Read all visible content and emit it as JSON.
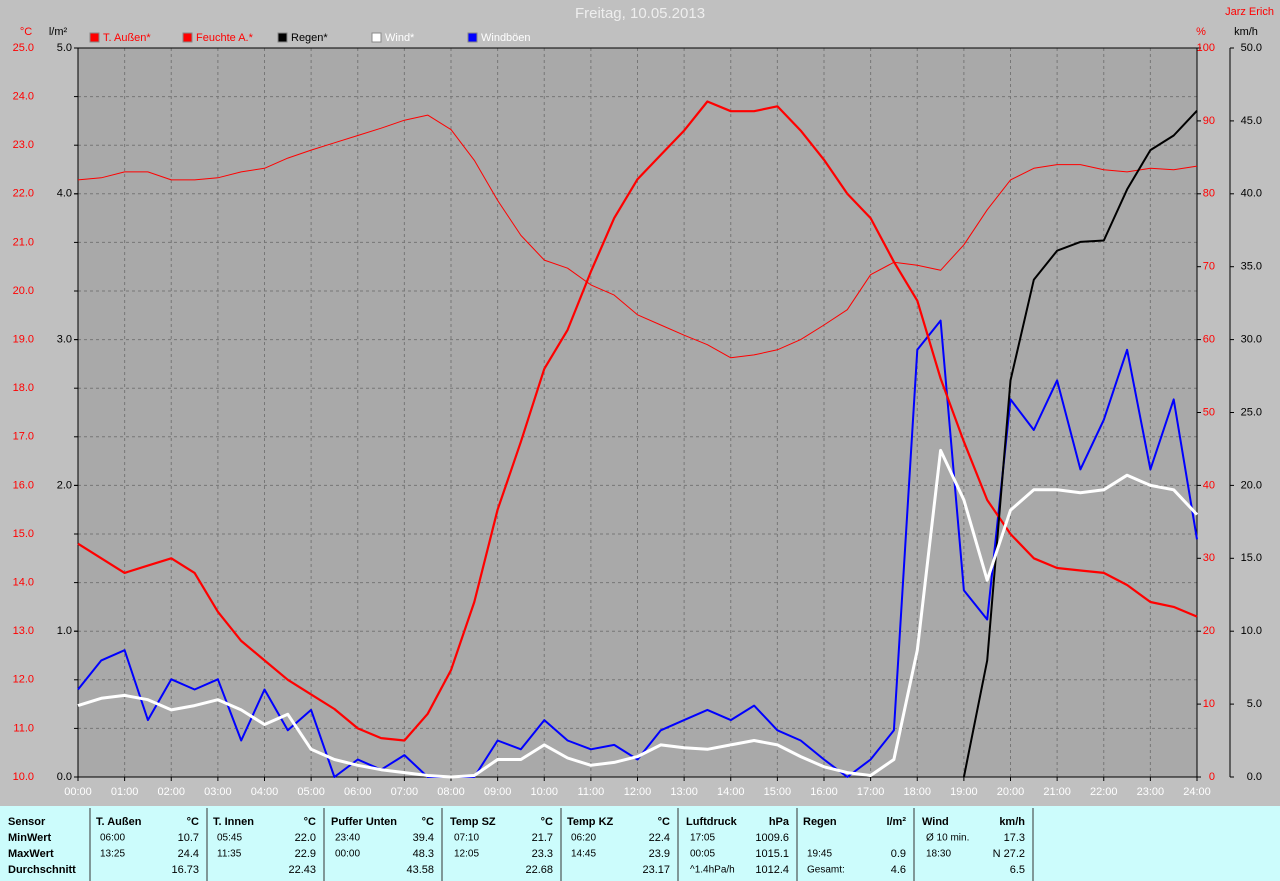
{
  "chart_data": {
    "type": "line",
    "title": "Freitag, 10.05.2013",
    "author": "Jarz Erich",
    "ylabel": "°C",
    "y2label": "%",
    "y3label": "l/m²",
    "y4label": "km/h",
    "x": [
      0,
      0.5,
      1,
      1.5,
      2,
      2.5,
      3,
      3.5,
      4,
      4.5,
      5,
      5.5,
      6,
      6.5,
      7,
      7.5,
      8,
      8.5,
      9,
      9.5,
      10,
      10.5,
      11,
      11.5,
      12,
      12.5,
      13,
      13.5,
      14,
      14.5,
      15,
      15.5,
      16,
      16.5,
      17,
      17.5,
      18,
      18.5,
      19,
      19.5,
      20,
      20.5,
      21,
      21.5,
      22,
      22.5,
      23,
      23.5,
      24
    ],
    "xlim": [
      0,
      24
    ],
    "xticks": [
      {
        "value": 0,
        "label": "00:00"
      },
      {
        "value": 1,
        "label": "01:00"
      },
      {
        "value": 2,
        "label": "02:00"
      },
      {
        "value": 3,
        "label": "03:00"
      },
      {
        "value": 4,
        "label": "04:00"
      },
      {
        "value": 5,
        "label": "05:00"
      },
      {
        "value": 6,
        "label": "06:00"
      },
      {
        "value": 7,
        "label": "07:00"
      },
      {
        "value": 8,
        "label": "08:00"
      },
      {
        "value": 9,
        "label": "09:00"
      },
      {
        "value": 10,
        "label": "10:00"
      },
      {
        "value": 11,
        "label": "11:00"
      },
      {
        "value": 12,
        "label": "12:00"
      },
      {
        "value": 13,
        "label": "13:00"
      },
      {
        "value": 14,
        "label": "14:00"
      },
      {
        "value": 15,
        "label": "15:00"
      },
      {
        "value": 16,
        "label": "16:00"
      },
      {
        "value": 17,
        "label": "17:00"
      },
      {
        "value": 18,
        "label": "18:00"
      },
      {
        "value": 19,
        "label": "19:00"
      },
      {
        "value": 20,
        "label": "20:00"
      },
      {
        "value": 21,
        "label": "21:00"
      },
      {
        "value": 22,
        "label": "22:00"
      },
      {
        "value": 23,
        "label": "23:00"
      },
      {
        "value": 24,
        "label": "24:00"
      }
    ],
    "ylim": [
      10,
      25
    ],
    "yticks": [
      {
        "value": 10,
        "label": "10.0"
      },
      {
        "value": 11,
        "label": "11.0"
      },
      {
        "value": 12,
        "label": "12.0"
      },
      {
        "value": 13,
        "label": "13.0"
      },
      {
        "value": 14,
        "label": "14.0"
      },
      {
        "value": 15,
        "label": "15.0"
      },
      {
        "value": 16,
        "label": "16.0"
      },
      {
        "value": 17,
        "label": "17.0"
      },
      {
        "value": 18,
        "label": "18.0"
      },
      {
        "value": 19,
        "label": "19.0"
      },
      {
        "value": 20,
        "label": "20.0"
      },
      {
        "value": 21,
        "label": "21.0"
      },
      {
        "value": 22,
        "label": "22.0"
      },
      {
        "value": 23,
        "label": "23.0"
      },
      {
        "value": 24,
        "label": "24.0"
      },
      {
        "value": 25,
        "label": "25.0"
      }
    ],
    "y2lim": [
      0,
      100
    ],
    "y2ticks": [
      0,
      10,
      20,
      30,
      40,
      50,
      60,
      70,
      80,
      90,
      100
    ],
    "y3lim": [
      0,
      5
    ],
    "y3ticks": [
      {
        "value": 0,
        "label": "0.0"
      },
      {
        "value": 1,
        "label": "1.0"
      },
      {
        "value": 2,
        "label": "2.0"
      },
      {
        "value": 3,
        "label": "3.0"
      },
      {
        "value": 4,
        "label": "4.0"
      },
      {
        "value": 5,
        "label": "5.0"
      }
    ],
    "y4lim": [
      0,
      50
    ],
    "y4ticks": [
      {
        "value": 0,
        "label": "0.0"
      },
      {
        "value": 5,
        "label": "5.0"
      },
      {
        "value": 10,
        "label": "10.0"
      },
      {
        "value": 15,
        "label": "15.0"
      },
      {
        "value": 20,
        "label": "20.0"
      },
      {
        "value": 25,
        "label": "25.0"
      },
      {
        "value": 30,
        "label": "30.0"
      },
      {
        "value": 35,
        "label": "35.0"
      },
      {
        "value": 40,
        "label": "40.0"
      },
      {
        "value": 45,
        "label": "45.0"
      },
      {
        "value": 50,
        "label": "50.0"
      }
    ],
    "grid": true,
    "series": [
      {
        "name": "T. Außen*",
        "color": "#ff0000",
        "legend_text_color": "#ff0000",
        "axis": "y",
        "width": 2.2,
        "values": [
          14.8,
          14.5,
          14.2,
          14.35,
          14.5,
          14.2,
          13.4,
          12.8,
          12.4,
          12.0,
          11.7,
          11.4,
          11.0,
          10.8,
          10.75,
          11.3,
          12.2,
          13.6,
          15.5,
          16.9,
          18.4,
          19.2,
          20.4,
          21.5,
          22.3,
          22.8,
          23.3,
          23.9,
          23.7,
          23.7,
          23.8,
          23.3,
          22.7,
          22.0,
          21.5,
          20.6,
          19.8,
          18.2,
          16.9,
          15.7,
          15.0,
          14.5,
          14.3,
          14.25,
          14.2,
          13.95,
          13.6,
          13.5,
          13.3
        ]
      },
      {
        "name": "Feuchte A.*",
        "color": "#ff0000",
        "legend_text_color": "#ff0000",
        "axis": "y2",
        "width": 1,
        "values": [
          81.9,
          82.2,
          83,
          83,
          81.9,
          81.9,
          82.2,
          83,
          83.5,
          84.9,
          86,
          87,
          88,
          89,
          90.1,
          90.8,
          88.8,
          84.6,
          79.1,
          74.3,
          70.9,
          69.8,
          67.5,
          66.1,
          63.4,
          62,
          60.6,
          59.3,
          57.5,
          57.9,
          58.6,
          60,
          62,
          64.1,
          68.9,
          70.6,
          70.2,
          69.5,
          73,
          77.8,
          81.9,
          83.5,
          84,
          84,
          83.3,
          83,
          83.5,
          83.3,
          83.8
        ]
      },
      {
        "name": "Regen*",
        "color": "#000000",
        "legend_text_color": "#000000",
        "axis": "y3",
        "width": 2,
        "values": [
          null,
          null,
          null,
          null,
          null,
          null,
          null,
          null,
          null,
          null,
          null,
          null,
          null,
          null,
          null,
          null,
          null,
          null,
          null,
          null,
          null,
          null,
          null,
          null,
          null,
          null,
          null,
          null,
          null,
          null,
          null,
          null,
          null,
          null,
          null,
          null,
          null,
          null,
          0,
          0.8,
          2.72,
          3.41,
          3.61,
          3.67,
          3.68,
          4.03,
          4.3,
          4.4,
          4.57
        ]
      },
      {
        "name": "Wind*",
        "color": "#ffffff",
        "legend_text_color": "#ffffff",
        "axis": "y4",
        "width": 3,
        "values": [
          4.9,
          5.4,
          5.6,
          5.3,
          4.6,
          4.9,
          5.3,
          4.6,
          3.6,
          4.3,
          1.9,
          1.2,
          0.8,
          0.5,
          0.3,
          0.1,
          0,
          0.1,
          1.2,
          1.2,
          2.2,
          1.3,
          0.8,
          1.0,
          1.4,
          2.2,
          2.0,
          1.9,
          2.2,
          2.5,
          2.2,
          1.4,
          0.7,
          0.3,
          0.1,
          1.2,
          8.7,
          22.4,
          19,
          13.5,
          18.3,
          19.7,
          19.7,
          19.5,
          19.7,
          20.7,
          20,
          19.7,
          18
        ]
      },
      {
        "name": "Windböen",
        "color": "#0000ff",
        "legend_text_color": "#ffffff",
        "axis": "y4",
        "width": 2,
        "values": [
          6,
          8,
          8.7,
          3.9,
          6.7,
          6,
          6.7,
          2.5,
          6,
          3.2,
          4.6,
          0,
          1.2,
          0.5,
          1.5,
          0,
          0,
          0,
          2.5,
          1.9,
          3.9,
          2.5,
          1.9,
          2.2,
          1.2,
          3.2,
          3.9,
          4.6,
          3.9,
          4.9,
          3.2,
          2.5,
          1.2,
          0,
          1.2,
          3.2,
          29.3,
          31.3,
          12.8,
          10.8,
          25.9,
          23.8,
          27.2,
          21.1,
          24.5,
          29.3,
          21.1,
          25.9,
          16.3
        ]
      }
    ]
  },
  "table": {
    "labels": [
      "Sensor",
      "MinWert",
      "MaxWert",
      "Durchschnitt"
    ],
    "blocks": [
      {
        "name": "T. Außen",
        "unit": "°C",
        "min": [
          "06:00",
          "10.7"
        ],
        "max": [
          "13:25",
          "24.4"
        ],
        "avg": [
          "16.73"
        ]
      },
      {
        "name": "T. Innen",
        "unit": "°C",
        "min": [
          "05:45",
          "22.0"
        ],
        "max": [
          "11:35",
          "22.9"
        ],
        "avg": [
          "22.43"
        ]
      },
      {
        "name": "Puffer Unten",
        "unit": "°C",
        "min": [
          "23:40",
          "39.4"
        ],
        "max": [
          "00:00",
          "48.3"
        ],
        "avg": [
          "43.58"
        ]
      },
      {
        "name": "Temp SZ",
        "unit": "°C",
        "min": [
          "07:10",
          "21.7"
        ],
        "max": [
          "12:05",
          "23.3"
        ],
        "avg": [
          "22.68"
        ]
      },
      {
        "name": "Temp KZ",
        "unit": "°C",
        "min": [
          "06:20",
          "22.4"
        ],
        "max": [
          "14:45",
          "23.9"
        ],
        "avg": [
          "23.17"
        ]
      },
      {
        "name": "Luftdruck",
        "unit": "hPa",
        "min": [
          "17:05",
          "1009.6"
        ],
        "max": [
          "00:05",
          "1015.1"
        ],
        "avg": [
          "^1.4hPa/h",
          "1012.4"
        ]
      },
      {
        "name": "Regen",
        "unit": "l/m²",
        "max": [
          "19:45",
          "0.9"
        ],
        "avg": [
          "Gesamt:",
          "4.6"
        ]
      },
      {
        "name": "Wind",
        "unit": "km/h",
        "min": [
          "Ø 10 min.",
          "17.3"
        ],
        "max": [
          "18:30",
          "N 27.2"
        ],
        "avg": [
          "6.5"
        ]
      }
    ]
  }
}
